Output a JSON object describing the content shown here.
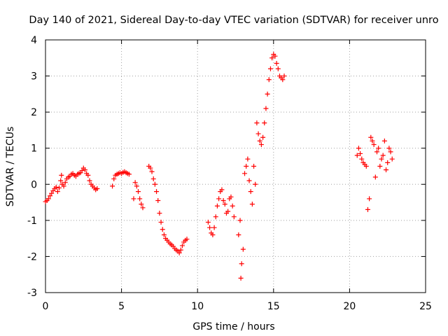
{
  "chart_data": {
    "type": "scatter",
    "title": "Day 140 of 2021, Sidereal Day-to-day VTEC variation (SDTVAR) for receiver unro",
    "xlabel": "GPS time / hours",
    "ylabel": "SDTVAR / TECUs",
    "xlim": [
      0,
      25
    ],
    "ylim": [
      -3,
      4
    ],
    "xticks": [
      "0",
      "5",
      "10",
      "15",
      "20",
      "25"
    ],
    "yticks": [
      "-3",
      "-2",
      "-1",
      "0",
      "1",
      "2",
      "3",
      "4"
    ],
    "grid": true,
    "marker": "+",
    "series": [
      {
        "name": "SDTVAR",
        "color": "#ff0000",
        "x": [
          0.0,
          0.1,
          0.2,
          0.3,
          0.4,
          0.5,
          0.6,
          0.7,
          0.8,
          0.9,
          1.0,
          1.05,
          1.1,
          1.2,
          1.3,
          1.4,
          1.5,
          1.6,
          1.7,
          1.8,
          1.9,
          2.0,
          2.1,
          2.2,
          2.3,
          2.4,
          2.5,
          2.6,
          2.7,
          2.8,
          2.9,
          3.0,
          3.1,
          3.2,
          3.3,
          3.4,
          4.4,
          4.5,
          4.6,
          4.7,
          4.8,
          4.9,
          5.0,
          5.1,
          5.2,
          5.3,
          5.4,
          5.5,
          5.8,
          5.9,
          6.0,
          6.1,
          6.2,
          6.3,
          6.4,
          6.8,
          6.9,
          7.0,
          7.1,
          7.2,
          7.3,
          7.4,
          7.5,
          7.6,
          7.7,
          7.8,
          7.9,
          8.0,
          8.1,
          8.2,
          8.3,
          8.4,
          8.5,
          8.6,
          8.7,
          8.8,
          8.9,
          9.0,
          9.1,
          9.2,
          9.3,
          10.7,
          10.8,
          10.9,
          11.0,
          11.1,
          11.2,
          11.3,
          11.4,
          11.5,
          11.6,
          11.7,
          11.8,
          11.9,
          12.0,
          12.1,
          12.2,
          12.3,
          12.4,
          12.7,
          12.8,
          12.85,
          12.9,
          13.0,
          13.1,
          13.2,
          13.3,
          13.4,
          13.5,
          13.6,
          13.7,
          13.8,
          13.9,
          14.0,
          14.1,
          14.2,
          14.3,
          14.4,
          14.5,
          14.6,
          14.7,
          14.8,
          14.9,
          15.0,
          15.1,
          15.2,
          15.3,
          15.4,
          15.5,
          15.6,
          15.7,
          20.5,
          20.6,
          20.7,
          20.8,
          20.9,
          21.0,
          21.1,
          21.2,
          21.3,
          21.4,
          21.5,
          21.6,
          21.7,
          21.8,
          21.9,
          22.0,
          22.1,
          22.2,
          22.3,
          22.4,
          22.5,
          22.6,
          22.7,
          22.8
        ],
        "y": [
          -0.48,
          -0.45,
          -0.4,
          -0.32,
          -0.25,
          -0.18,
          -0.12,
          -0.08,
          -0.2,
          -0.1,
          0.1,
          0.25,
          0.0,
          -0.05,
          0.05,
          0.15,
          0.2,
          0.22,
          0.28,
          0.3,
          0.25,
          0.22,
          0.28,
          0.3,
          0.32,
          0.38,
          0.45,
          0.4,
          0.3,
          0.25,
          0.1,
          0.0,
          -0.05,
          -0.1,
          -0.15,
          -0.12,
          -0.05,
          0.15,
          0.25,
          0.28,
          0.3,
          0.32,
          0.3,
          0.33,
          0.35,
          0.32,
          0.3,
          0.28,
          -0.4,
          0.05,
          -0.05,
          -0.2,
          -0.4,
          -0.55,
          -0.65,
          0.5,
          0.45,
          0.35,
          0.15,
          0.0,
          -0.2,
          -0.45,
          -0.8,
          -1.05,
          -1.25,
          -1.4,
          -1.5,
          -1.55,
          -1.6,
          -1.65,
          -1.68,
          -1.72,
          -1.78,
          -1.82,
          -1.85,
          -1.9,
          -1.82,
          -1.7,
          -1.6,
          -1.55,
          -1.52,
          -1.05,
          -1.2,
          -1.35,
          -1.4,
          -1.2,
          -0.9,
          -0.6,
          -0.4,
          -0.2,
          -0.15,
          -0.45,
          -0.55,
          -0.8,
          -0.75,
          -0.4,
          -0.35,
          -0.6,
          -0.9,
          -1.4,
          -1.0,
          -2.6,
          -2.2,
          -1.8,
          0.3,
          0.5,
          0.7,
          0.1,
          -0.2,
          -0.55,
          0.5,
          0.0,
          1.7,
          1.4,
          1.2,
          1.1,
          1.3,
          1.7,
          2.1,
          2.5,
          2.9,
          3.2,
          3.5,
          3.6,
          3.55,
          3.35,
          3.2,
          3.0,
          2.95,
          2.9,
          3.0,
          0.8,
          1.0,
          0.85,
          0.7,
          0.6,
          0.55,
          0.5,
          -0.7,
          -0.4,
          1.3,
          1.2,
          1.1,
          0.2,
          0.9,
          1.0,
          0.5,
          0.7,
          0.8,
          1.2,
          0.4,
          0.6,
          1.0,
          0.9,
          0.7
        ]
      }
    ]
  }
}
